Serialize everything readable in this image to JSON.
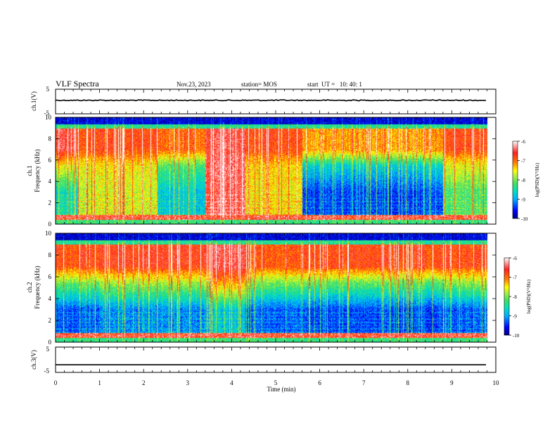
{
  "header": {
    "title": "VLF Spectra",
    "date": "Nov.23, 2023",
    "station": "station= MOS",
    "start_ut": "start  UT =   10: 40: 1"
  },
  "colors": {
    "spectrogram_scale": [
      "#000080",
      "#0000ff",
      "#00b0ff",
      "#00e0c0",
      "#40e060",
      "#b0f040",
      "#ffff00",
      "#ff8000",
      "#ff2020",
      "#ffffff"
    ]
  },
  "chart_data": [
    {
      "type": "line",
      "name": "ch1-voltage",
      "ylabel": "ch.1(V)",
      "ylim": [
        -5,
        5
      ],
      "yticks": [
        "5",
        "-5"
      ],
      "xlim": [
        0,
        10
      ],
      "note_value": 0.5
    },
    {
      "type": "heatmap",
      "name": "ch1-spectrogram",
      "ylabel_channel": "ch.1",
      "ylabel": "Frequency (kHz)",
      "ylim": [
        0,
        10
      ],
      "yticks": [
        "0",
        "2",
        "4",
        "6",
        "8",
        "10"
      ],
      "xlim": [
        0,
        10
      ],
      "colorbar": {
        "label": "log(PSD)(V²/Hz)",
        "range": [
          -10,
          -6
        ],
        "ticks": [
          "-6",
          "-7",
          "-8",
          "-9",
          "-10"
        ]
      },
      "band_segments": [
        {
          "t0": 0.0,
          "t1": 0.5,
          "low": -8.6,
          "mid": -7.6,
          "high": -6.6
        },
        {
          "t0": 0.5,
          "t1": 2.3,
          "low": -7.7,
          "mid": -7.5,
          "high": -6.8
        },
        {
          "t0": 2.3,
          "t1": 3.4,
          "low": -8.8,
          "mid": -8.2,
          "high": -7.0
        },
        {
          "t0": 3.4,
          "t1": 4.3,
          "low": -6.5,
          "mid": -6.4,
          "high": -6.5
        },
        {
          "t0": 4.3,
          "t1": 5.6,
          "low": -7.5,
          "mid": -7.4,
          "high": -6.8
        },
        {
          "t0": 5.6,
          "t1": 8.8,
          "low": -9.4,
          "mid": -8.7,
          "high": -7.2
        },
        {
          "t0": 8.8,
          "t1": 9.8,
          "low": -8.2,
          "mid": -7.6,
          "high": -6.8
        }
      ]
    },
    {
      "type": "heatmap",
      "name": "ch2-spectrogram",
      "ylabel_channel": "ch.2",
      "ylabel": "Frequency (kHz)",
      "ylim": [
        0,
        10
      ],
      "yticks": [
        "0",
        "2",
        "4",
        "6",
        "8",
        "10"
      ],
      "xlim": [
        0,
        10
      ],
      "colorbar": {
        "label": "log(PSD)(V²/Hz)",
        "range": [
          -10,
          -6
        ],
        "ticks": [
          "-6",
          "-7",
          "-8",
          "-9",
          "-10"
        ]
      },
      "band_segments": [
        {
          "t0": 0.0,
          "t1": 1.0,
          "low": -9.3,
          "mid": -8.0,
          "high": -6.8
        },
        {
          "t0": 1.0,
          "t1": 3.5,
          "low": -9.1,
          "mid": -7.8,
          "high": -6.7
        },
        {
          "t0": 3.5,
          "t1": 4.3,
          "low": -8.8,
          "mid": -7.2,
          "high": -6.5
        },
        {
          "t0": 4.3,
          "t1": 5.6,
          "low": -9.3,
          "mid": -8.0,
          "high": -6.9
        },
        {
          "t0": 5.6,
          "t1": 8.8,
          "low": -9.4,
          "mid": -8.1,
          "high": -6.8
        },
        {
          "t0": 8.8,
          "t1": 9.8,
          "low": -9.3,
          "mid": -7.9,
          "high": -6.8
        }
      ]
    },
    {
      "type": "line",
      "name": "ch3-voltage",
      "ylabel": "ch.3(V)",
      "ylim": [
        -5,
        5
      ],
      "yticks": [
        "5",
        "-5"
      ],
      "xlim": [
        0,
        10
      ],
      "note_value": -2.0,
      "xlabel": "Time (min)",
      "xticks": [
        "0",
        "1",
        "2",
        "3",
        "4",
        "5",
        "6",
        "7",
        "8",
        "9",
        "10"
      ]
    }
  ]
}
